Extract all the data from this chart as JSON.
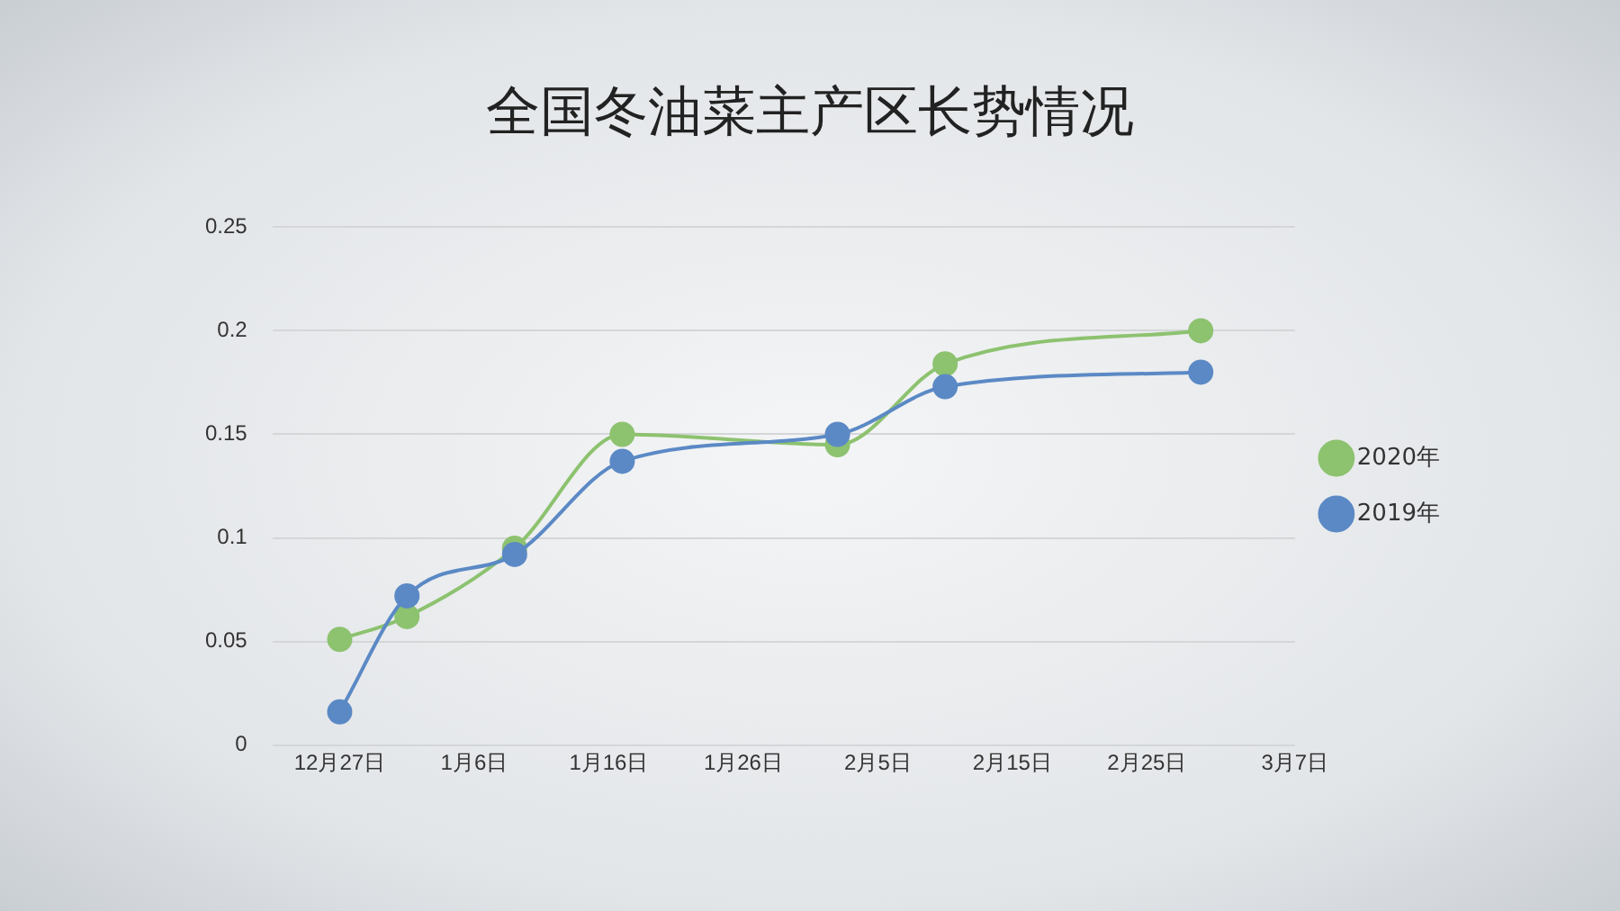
{
  "chart_data": {
    "type": "line",
    "title": "全国冬油菜主产区长势情况",
    "x": [
      "2019-12-27",
      "2020-01-01",
      "2020-01-09",
      "2020-01-17",
      "2020-02-02",
      "2020-02-10",
      "2020-02-29"
    ],
    "series": [
      {
        "name": "2020年",
        "color": "#8dc26f",
        "values": [
          0.051,
          0.062,
          0.095,
          0.15,
          0.145,
          0.184,
          0.2
        ]
      },
      {
        "name": "2019年",
        "color": "#5b89c5",
        "values": [
          0.016,
          0.072,
          0.092,
          0.137,
          0.15,
          0.173,
          0.18
        ]
      }
    ],
    "xlim": [
      "2019-12-22",
      "2020-03-07"
    ],
    "xticks": [
      {
        "value": "2019-12-27",
        "label": "12月27日"
      },
      {
        "value": "2020-01-06",
        "label": "1月6日"
      },
      {
        "value": "2020-01-16",
        "label": "1月16日"
      },
      {
        "value": "2020-01-26",
        "label": "1月26日"
      },
      {
        "value": "2020-02-05",
        "label": "2月5日"
      },
      {
        "value": "2020-02-15",
        "label": "2月15日"
      },
      {
        "value": "2020-02-25",
        "label": "2月25日"
      },
      {
        "value": "2020-03-07",
        "label": "3月7日"
      }
    ],
    "ylim": [
      0,
      0.25
    ],
    "yticks": [
      0,
      0.05,
      0.1,
      0.15,
      0.2,
      0.25
    ],
    "grid": "y",
    "legend": "right",
    "marker": "circle",
    "line_style": "solid"
  }
}
